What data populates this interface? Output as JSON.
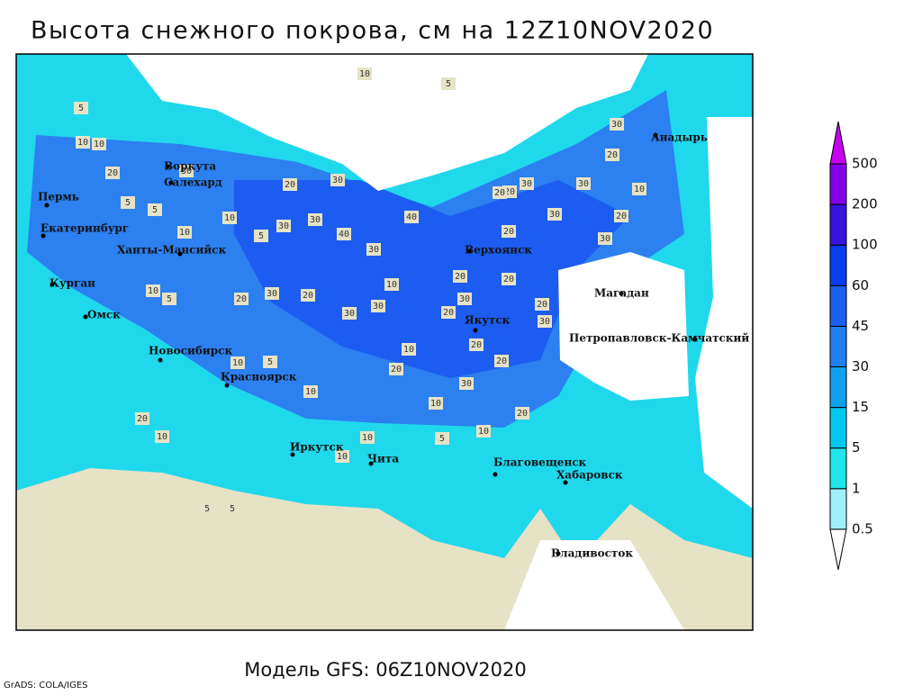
{
  "title": "Высота снежного покрова, см на 12Z10NOV2020",
  "subtitle": "Модель GFS: 06Z10NOV2020",
  "credit": "GrADS: COLA/IGES",
  "cities": [
    "Воркута",
    "Салехард",
    "Пермь",
    "Екатеринбург",
    "Ханты-Мансийск",
    "Курган",
    "Омск",
    "Новосибирск",
    "Красноярск",
    "Иркутск",
    "Чита",
    "Благовещенск",
    "Хабаровск",
    "Владивосток",
    "Якутск",
    "Верхоянск",
    "Магадан",
    "Петропавловск-Камчатский",
    "Анадырь"
  ],
  "contour_labels": [
    10,
    5,
    5,
    10,
    10,
    20,
    5,
    5,
    10,
    30,
    20,
    30,
    10,
    5,
    30,
    40,
    30,
    40,
    30,
    20,
    20,
    30,
    20,
    30,
    20,
    30,
    10,
    20,
    30,
    20,
    30,
    20,
    30,
    20,
    20,
    30,
    10,
    30,
    20,
    10,
    20,
    30,
    10,
    30,
    10,
    5,
    20,
    10,
    20,
    30,
    10,
    20,
    10,
    10,
    5,
    20,
    10,
    10,
    5,
    5,
    20,
    30,
    5
  ],
  "legend": {
    "levels": [
      0.5,
      1,
      5,
      15,
      30,
      45,
      60,
      100,
      200,
      500
    ],
    "colors": [
      "#ffffff",
      "#a0f0f8",
      "#20e6ea",
      "#00c8f0",
      "#10a0f0",
      "#2080f0",
      "#1c60f0",
      "#0a3cf0",
      "#3814e0",
      "#8400e8",
      "#c800f0"
    ]
  }
}
